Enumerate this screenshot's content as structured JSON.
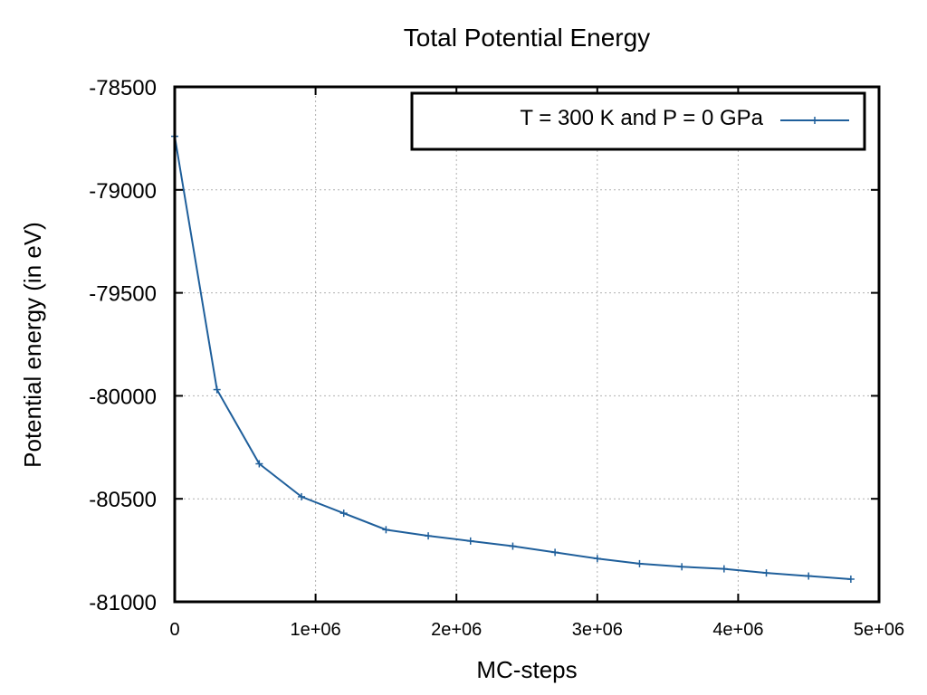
{
  "chart_data": {
    "type": "line",
    "title": "Total Potential Energy",
    "xlabel": "MC-steps",
    "ylabel": "Potential energy (in eV)",
    "xlim": [
      0,
      5000000
    ],
    "ylim": [
      -81000,
      -78500
    ],
    "x_ticks": [
      0,
      1000000,
      2000000,
      3000000,
      4000000,
      5000000
    ],
    "x_tick_labels": [
      "0",
      "1e+06",
      "2e+06",
      "3e+06",
      "4e+06",
      "5e+06"
    ],
    "y_ticks": [
      -78500,
      -79000,
      -79500,
      -80000,
      -80500,
      -81000
    ],
    "y_tick_labels": [
      "-78500",
      "-79000",
      "-79500",
      "-80000",
      "-80500",
      "-81000"
    ],
    "grid": true,
    "legend_position": "top-right",
    "series": [
      {
        "name": "T = 300 K and P = 0 GPa",
        "color": "#1f5f9b",
        "marker": "plus",
        "x": [
          0,
          300000,
          600000,
          900000,
          1200000,
          1500000,
          1800000,
          2100000,
          2400000,
          2700000,
          3000000,
          3300000,
          3600000,
          3900000,
          4200000,
          4500000,
          4800000
        ],
        "y": [
          -78740,
          -79970,
          -80330,
          -80490,
          -80570,
          -80650,
          -80680,
          -80705,
          -80730,
          -80760,
          -80790,
          -80815,
          -80830,
          -80840,
          -80860,
          -80875,
          -80890
        ]
      }
    ]
  }
}
